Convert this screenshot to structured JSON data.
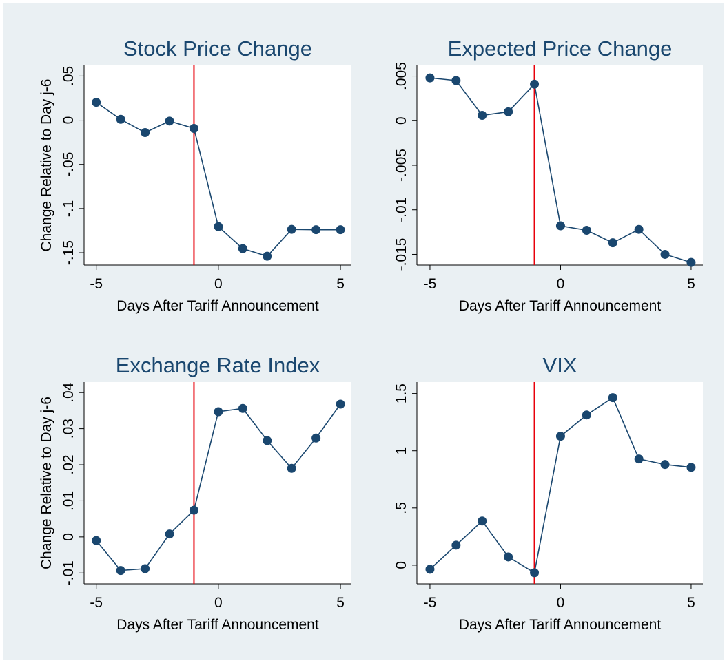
{
  "chart_data": [
    {
      "type": "line",
      "title": "Stock Price Change",
      "x_label": "Days After Tariff Announcement",
      "y_label": "Change Relative to Day j-6",
      "x": [
        -5,
        -4,
        -3,
        -2,
        -1,
        0,
        1,
        2,
        3,
        4,
        5
      ],
      "series": [
        {
          "color": "#1a476f",
          "values": [
            0.0202,
            0.001,
            -0.014,
            -0.001,
            -0.0093,
            -0.1205,
            -0.1454,
            -0.154,
            -0.1236,
            -0.124,
            -0.124
          ]
        }
      ],
      "vline": -1,
      "vline_color": "#e8000b",
      "xlim": [
        -5.5,
        5.45
      ],
      "xticks": [
        -5,
        0,
        5
      ],
      "ylim": [
        -0.164,
        0.062
      ],
      "yticks": [
        {
          "value": -0.15,
          "label": "-.15"
        },
        {
          "value": -0.1,
          "label": "-.1"
        },
        {
          "value": -0.05,
          "label": "-.05"
        },
        0,
        {
          "value": 0.05,
          "label": ".05"
        }
      ],
      "grid": false
    },
    {
      "type": "line",
      "title": "Expected Price Change",
      "x_label": "Days After Tariff Announcement",
      "x": [
        -5,
        -4,
        -3,
        -2,
        -1,
        0,
        1,
        2,
        3,
        4,
        5
      ],
      "series": [
        {
          "color": "#1a476f",
          "values": [
            0.0048,
            0.0045,
            0.0006,
            0.001,
            0.0041,
            -0.0118,
            -0.0123,
            -0.0137,
            -0.0122,
            -0.015,
            -0.0159
          ]
        }
      ],
      "vline": -1,
      "vline_color": "#e8000b",
      "xlim": [
        -5.5,
        5.45
      ],
      "xticks": [
        -5,
        0,
        5
      ],
      "ylim": [
        -0.0162,
        0.0062
      ],
      "yticks": [
        {
          "value": -0.015,
          "label": "-.015"
        },
        {
          "value": -0.01,
          "label": "-.01"
        },
        {
          "value": -0.005,
          "label": "-.005"
        },
        0,
        {
          "value": 0.005,
          "label": ".005"
        }
      ],
      "grid": false
    },
    {
      "type": "line",
      "title": "Exchange Rate Index",
      "x_label": "Days After Tariff Announcement",
      "y_label": "Change Relative to Day j-6",
      "x": [
        -5,
        -4,
        -3,
        -2,
        -1,
        0,
        1,
        2,
        3,
        4,
        5
      ],
      "series": [
        {
          "color": "#1a476f",
          "values": [
            -0.001,
            -0.0093,
            -0.0088,
            0.0008,
            0.0074,
            0.0347,
            0.0356,
            0.0267,
            0.019,
            0.0274,
            0.0368
          ]
        }
      ],
      "vline": -1,
      "vline_color": "#e8000b",
      "xlim": [
        -5.5,
        5.45
      ],
      "xticks": [
        -5,
        0,
        5
      ],
      "ylim": [
        -0.013,
        0.0429
      ],
      "yticks": [
        {
          "value": -0.01,
          "label": "-.01"
        },
        0,
        {
          "value": 0.01,
          "label": ".01"
        },
        {
          "value": 0.02,
          "label": ".02"
        },
        {
          "value": 0.03,
          "label": ".03"
        },
        {
          "value": 0.04,
          "label": ".04"
        }
      ],
      "grid": false
    },
    {
      "type": "line",
      "title": "VIX",
      "x_label": "Days After Tariff Announcement",
      "x": [
        -5,
        -4,
        -3,
        -2,
        -1,
        0,
        1,
        2,
        3,
        4,
        5
      ],
      "series": [
        {
          "color": "#1a476f",
          "values": [
            -0.036,
            0.175,
            0.386,
            0.072,
            -0.066,
            1.127,
            1.313,
            1.464,
            0.928,
            0.88,
            0.855
          ]
        }
      ],
      "vline": -1,
      "vline_color": "#e8000b",
      "xlim": [
        -5.5,
        5.45
      ],
      "xticks": [
        -5,
        0,
        5
      ],
      "ylim": [
        -0.163,
        1.6
      ],
      "yticks": [
        0,
        {
          "value": 0.5,
          "label": ".5"
        },
        1,
        1.5
      ],
      "grid": false
    }
  ]
}
